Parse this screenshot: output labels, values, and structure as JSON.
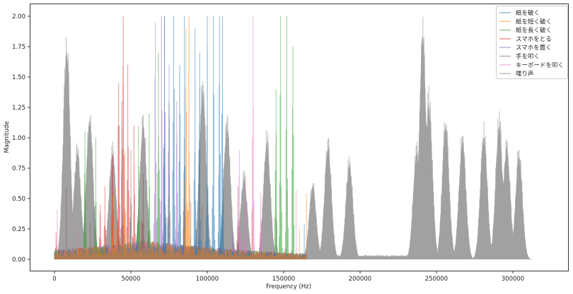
{
  "chart_data": {
    "type": "line",
    "title": "",
    "xlabel": "Frequency (Hz)",
    "ylabel": "Magnitude",
    "xlim": [
      -15000,
      335000
    ],
    "ylim": [
      -0.08,
      2.1
    ],
    "xticks": [
      0,
      50000,
      100000,
      150000,
      200000,
      250000,
      300000
    ],
    "xtick_labels": [
      "0",
      "50000",
      "100000",
      "150000",
      "200000",
      "250000",
      "300000"
    ],
    "yticks": [
      0.0,
      0.25,
      0.5,
      0.75,
      1.0,
      1.25,
      1.5,
      1.75,
      2.0
    ],
    "ytick_labels": [
      "0.00",
      "0.25",
      "0.50",
      "0.75",
      "1.00",
      "1.25",
      "1.50",
      "1.75",
      "2.00"
    ],
    "grid": false,
    "legend_position": "upper right",
    "alpha": 0.5,
    "series": [
      {
        "name": "紙を破く",
        "color": "#1f77b4",
        "x_range": [
          0,
          165000
        ],
        "peaks": [
          [
            72000,
            2.0
          ],
          [
            78000,
            2.0
          ],
          [
            85000,
            2.0
          ],
          [
            92000,
            1.9
          ],
          [
            100000,
            2.0
          ],
          [
            104000,
            2.0
          ],
          [
            108000,
            2.0
          ],
          [
            110000,
            2.0
          ],
          [
            95000,
            1.7
          ],
          [
            82000,
            1.6
          ]
        ]
      },
      {
        "name": "紙を短く破く",
        "color": "#ff7f0e",
        "x_range": [
          0,
          165000
        ],
        "peaks": [
          [
            88000,
            2.0
          ],
          [
            86000,
            1.9
          ],
          [
            46000,
            0.9
          ],
          [
            40000,
            0.6
          ]
        ]
      },
      {
        "name": "紙を長く破く",
        "color": "#2ca02c",
        "x_range": [
          0,
          165000
        ],
        "peaks": [
          [
            55000,
            1.1
          ],
          [
            62000,
            1.2
          ],
          [
            68000,
            1.7
          ],
          [
            75000,
            1.3
          ],
          [
            148000,
            2.0
          ],
          [
            152000,
            2.0
          ],
          [
            156000,
            1.75
          ],
          [
            145000,
            1.4
          ],
          [
            27000,
            1.0
          ],
          [
            20000,
            1.05
          ]
        ]
      },
      {
        "name": "スマホをとる",
        "color": "#d62728",
        "x_range": [
          0,
          165000
        ],
        "peaks": [
          [
            45000,
            2.0
          ],
          [
            42000,
            1.45
          ],
          [
            48000,
            1.6
          ],
          [
            38000,
            0.85
          ],
          [
            33000,
            0.6
          ],
          [
            30000,
            0.45
          ],
          [
            52000,
            1.1
          ],
          [
            1000,
            0.22
          ]
        ]
      },
      {
        "name": "スマホを置く",
        "color": "#9467bd",
        "x_range": [
          0,
          165000
        ],
        "peaks": [
          [
            70000,
            2.0
          ],
          [
            72000,
            2.0
          ],
          [
            66000,
            1.95
          ],
          [
            75000,
            1.6
          ],
          [
            80000,
            1.3
          ]
        ]
      },
      {
        "name": "手を叩く",
        "color": "#8c564b",
        "x_range": [
          0,
          165000
        ],
        "peaks": [
          [
            44000,
            1.3
          ],
          [
            50000,
            0.9
          ],
          [
            58000,
            0.7
          ],
          [
            85000,
            1.0
          ],
          [
            120000,
            0.6
          ]
        ]
      },
      {
        "name": "キーボードを叩く",
        "color": "#e377c2",
        "x_range": [
          0,
          165000
        ],
        "peaks": [
          [
            130000,
            2.0
          ],
          [
            125000,
            0.7
          ],
          [
            135000,
            0.55
          ],
          [
            121000,
            0.9
          ],
          [
            145000,
            0.4
          ]
        ]
      },
      {
        "name": "喋り声",
        "color": "#7f7f7f",
        "x_range": [
          0,
          320000
        ],
        "peaks": [
          [
            8000,
            1.85
          ],
          [
            15000,
            0.95
          ],
          [
            23000,
            1.25
          ],
          [
            38000,
            0.95
          ],
          [
            58000,
            1.2
          ],
          [
            97000,
            1.5
          ],
          [
            113000,
            1.15
          ],
          [
            124000,
            0.72
          ],
          [
            139000,
            1.05
          ],
          [
            169000,
            0.65
          ],
          [
            179000,
            1.0
          ],
          [
            193000,
            0.85
          ],
          [
            237000,
            0.95
          ],
          [
            241000,
            2.0
          ],
          [
            245000,
            1.4
          ],
          [
            256000,
            1.18
          ],
          [
            267000,
            1.05
          ],
          [
            281000,
            1.1
          ],
          [
            291000,
            1.2
          ],
          [
            296000,
            1.0
          ],
          [
            304000,
            0.92
          ]
        ]
      }
    ]
  },
  "legend": {
    "items": [
      {
        "label": "紙を破く",
        "color": "#1f77b4"
      },
      {
        "label": "紙を短く破く",
        "color": "#ff7f0e"
      },
      {
        "label": "紙を長く破く",
        "color": "#2ca02c"
      },
      {
        "label": "スマホをとる",
        "color": "#d62728"
      },
      {
        "label": "スマホを置く",
        "color": "#9467bd"
      },
      {
        "label": "手を叩く",
        "color": "#8c564b"
      },
      {
        "label": "キーボードを叩く",
        "color": "#e377c2"
      },
      {
        "label": "喋り声",
        "color": "#7f7f7f"
      }
    ]
  }
}
